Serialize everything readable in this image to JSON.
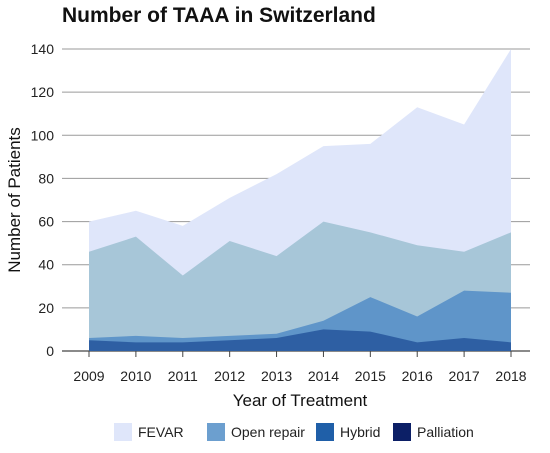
{
  "chart_data": {
    "type": "area",
    "title": "Number of TAAA in Switzerland",
    "xlabel": "Year of Treatment",
    "ylabel": "Number of Patients",
    "ylim": [
      0,
      140
    ],
    "yticks": [
      0,
      20,
      40,
      60,
      80,
      100,
      120,
      140
    ],
    "x": [
      2009,
      2010,
      2011,
      2012,
      2013,
      2014,
      2015,
      2016,
      2017,
      2018
    ],
    "grid": true,
    "legend_position": "bottom",
    "series": [
      {
        "name": "FEVAR",
        "color": "#dfe6fa",
        "values": [
          60,
          65,
          58,
          71,
          82,
          95,
          96,
          113,
          105,
          140
        ]
      },
      {
        "name": "Open repair",
        "color": "#a7c6d8",
        "values": [
          46,
          53,
          35,
          51,
          44,
          60,
          55,
          49,
          46,
          55
        ]
      },
      {
        "name": "Hybrid",
        "color": "#5f95c9",
        "values": [
          6,
          7,
          6,
          7,
          8,
          14,
          25,
          16,
          28,
          27
        ]
      },
      {
        "name": "Palliation",
        "color": "#2e5fa3",
        "values": [
          5,
          4,
          4,
          5,
          6,
          10,
          9,
          4,
          6,
          4
        ]
      }
    ],
    "legend_colors": {
      "FEVAR": "#dfe6fa",
      "Open repair": "#6c9fcf",
      "Hybrid": "#1f5fa8",
      "Palliation": "#0c1f66"
    }
  }
}
